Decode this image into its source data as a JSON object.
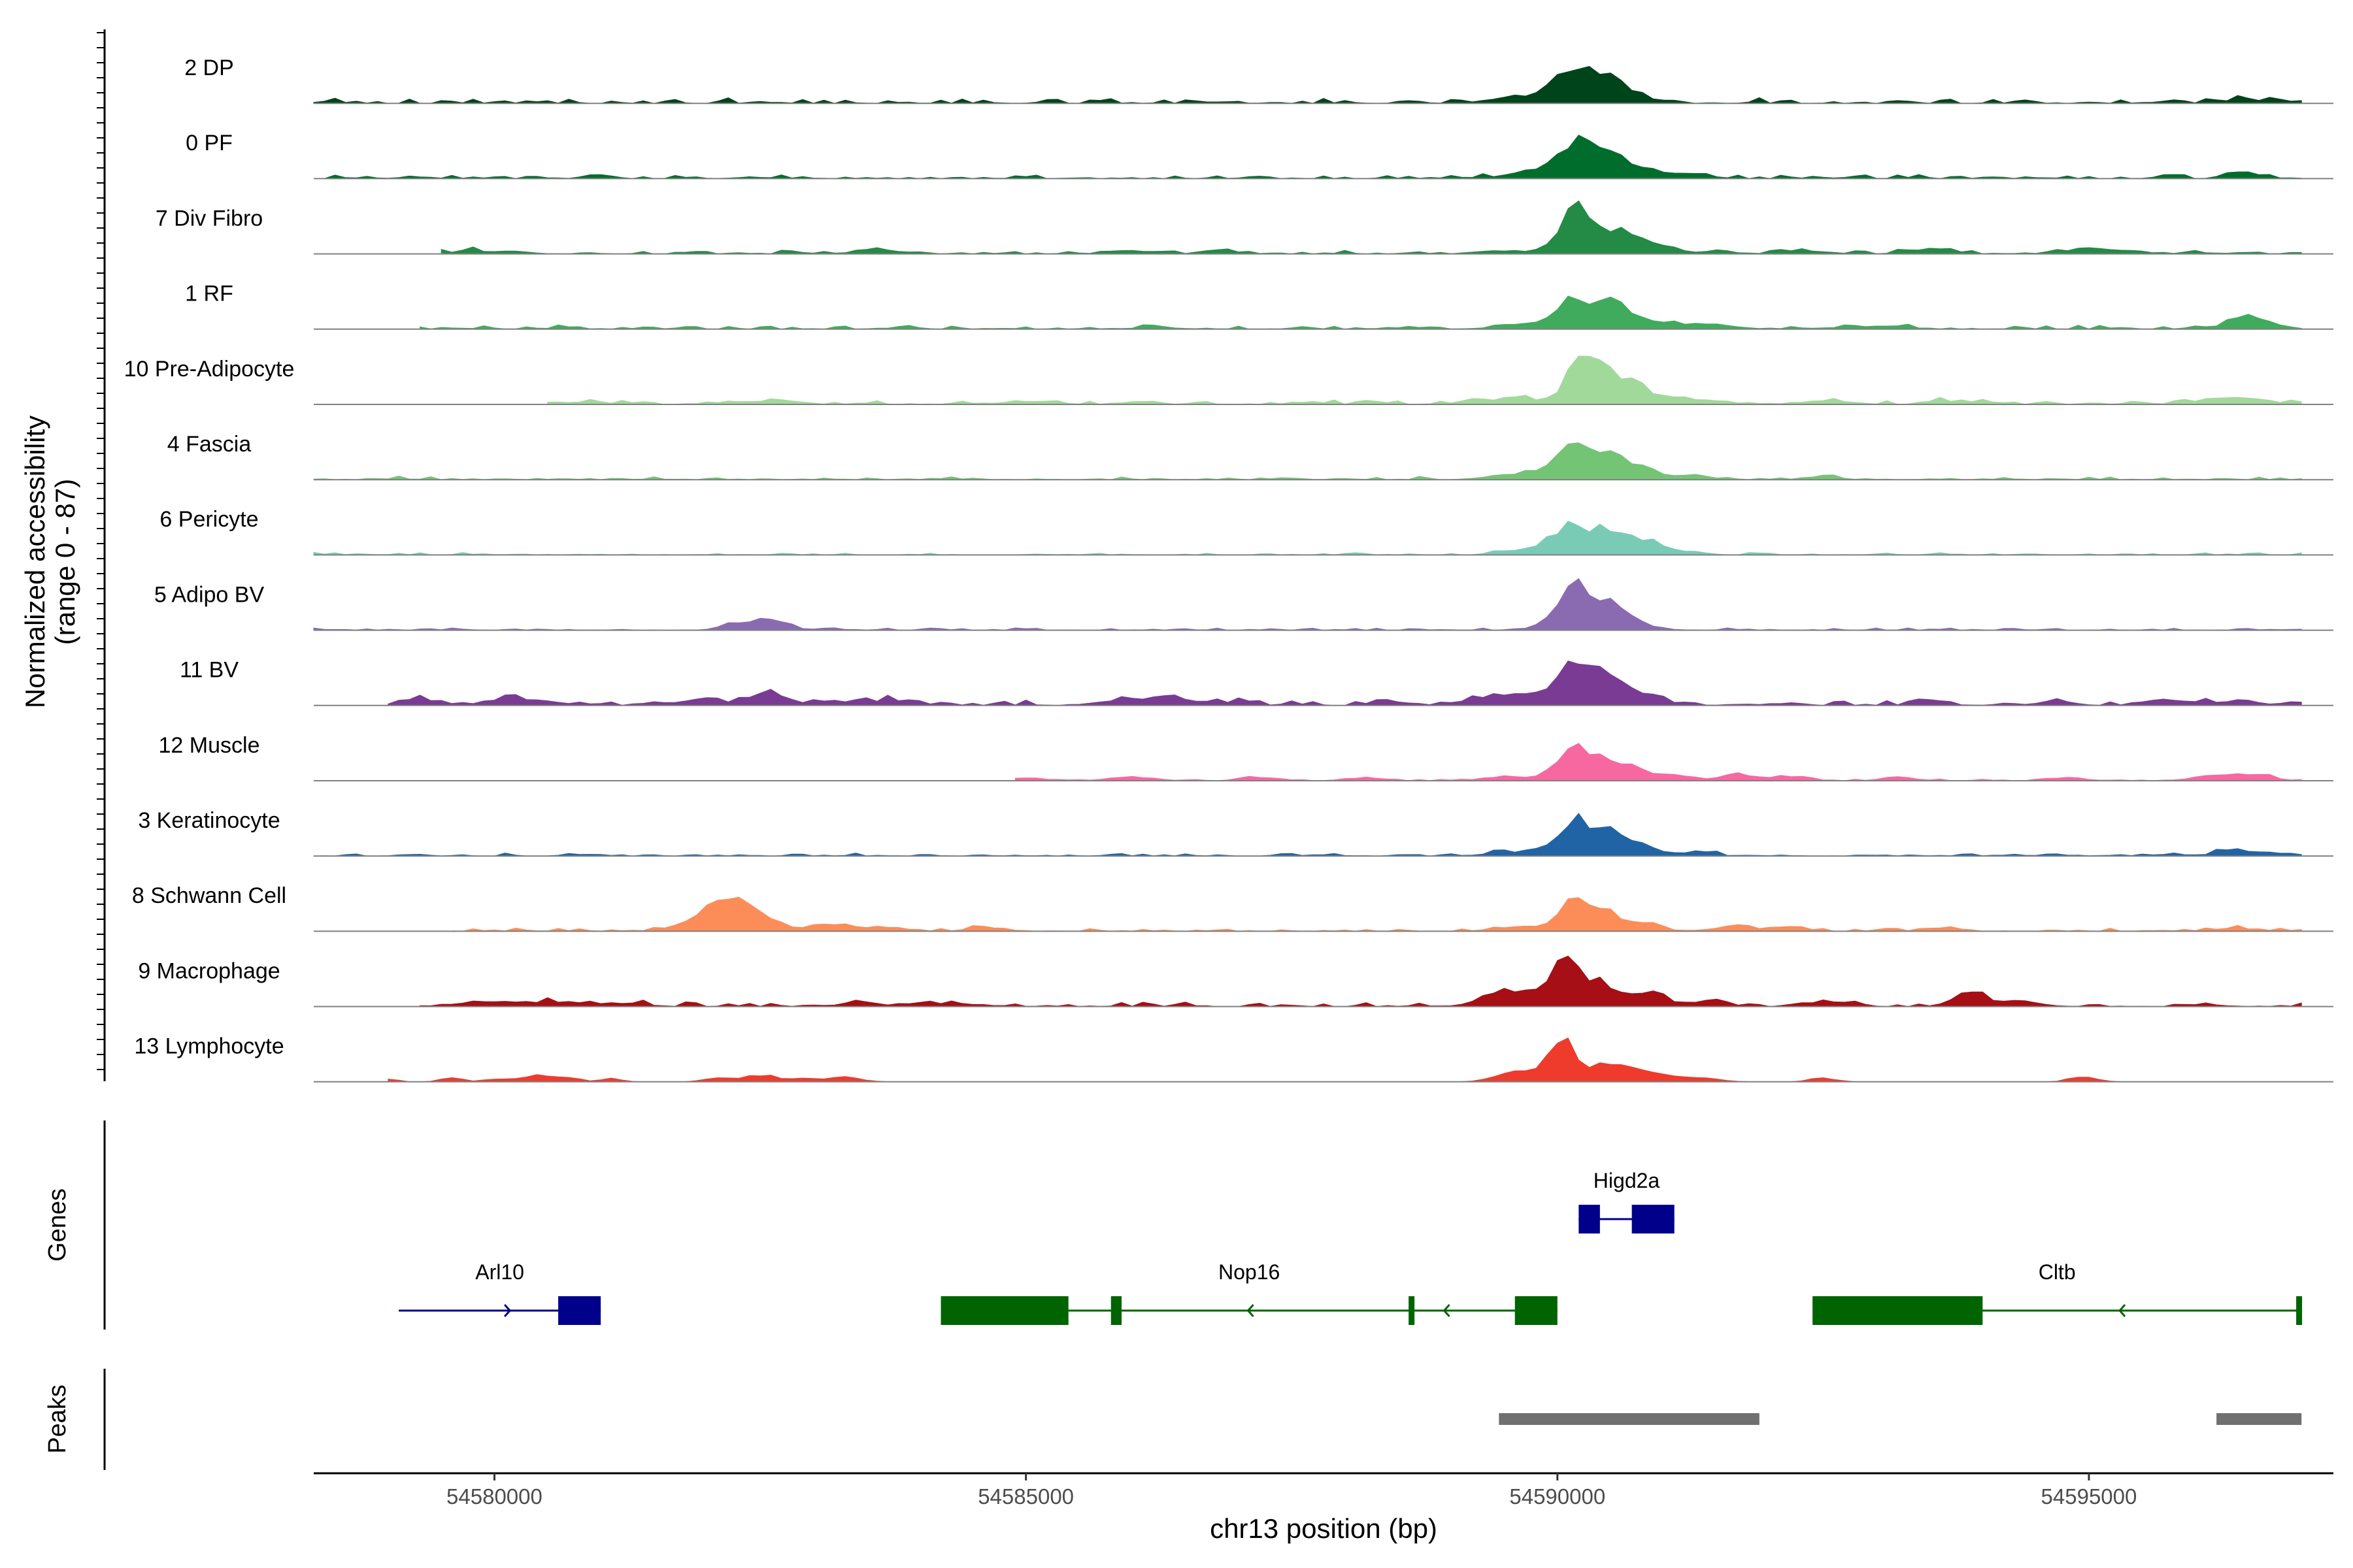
{
  "chart_data": {
    "type": "area",
    "title": "",
    "xlabel": "chr13 position (bp)",
    "ylabel": "Normalized accessibility",
    "ylabel_sub": "(range 0 - 87)",
    "xlim": [
      54578300,
      54597300
    ],
    "ylim": [
      0,
      87
    ],
    "x_ticks": [
      54580000,
      54585000,
      54590000,
      54595000
    ],
    "x_tick_labels": [
      "54580000",
      "54585000",
      "54590000",
      "54595000"
    ],
    "bin_bp": 100,
    "tracks": [
      {
        "name": "2 DP",
        "color": "#00441b",
        "bg": 0.7,
        "noise_start": 54578300,
        "noise_end": 54597000,
        "peaks": [
          [
            54589600,
            0.4,
            300
          ],
          [
            54589850,
            0.7,
            220
          ],
          [
            54590170,
            4.6,
            150
          ],
          [
            54590500,
            3.2,
            150
          ],
          [
            54590850,
            0.6,
            150
          ],
          [
            54596450,
            0.5,
            150
          ],
          [
            54596900,
            0.3,
            150
          ]
        ]
      },
      {
        "name": "0 PF",
        "color": "#006d2c",
        "bg": 0.5,
        "noise_start": 54578300,
        "noise_end": 54597000,
        "peaks": [
          [
            54589600,
            0.3,
            300
          ],
          [
            54589850,
            0.6,
            220
          ],
          [
            54590170,
            4.2,
            150
          ],
          [
            54590500,
            3.1,
            150
          ],
          [
            54590850,
            1.1,
            150
          ],
          [
            54591300,
            0.4,
            200
          ],
          [
            54596450,
            0.8,
            150
          ]
        ]
      },
      {
        "name": "7 Div Fibro",
        "color": "#238b45",
        "bg": 0.5,
        "noise_start": 54579500,
        "noise_end": 54597000,
        "peaks": [
          [
            54579800,
            0.3,
            300
          ],
          [
            54583600,
            0.4,
            200
          ],
          [
            54586100,
            0.3,
            200
          ],
          [
            54586800,
            0.4,
            120
          ],
          [
            54589500,
            0.4,
            200
          ],
          [
            54590150,
            4.7,
            150
          ],
          [
            54590400,
            2.4,
            150
          ],
          [
            54590700,
            2.2,
            150
          ],
          [
            54591000,
            0.7,
            150
          ],
          [
            54592300,
            0.5,
            200
          ],
          [
            54593500,
            0.6,
            200
          ],
          [
            54594900,
            0.4,
            200
          ],
          [
            54595300,
            0.4,
            200
          ]
        ]
      },
      {
        "name": "1 RF",
        "color": "#41ab5d",
        "bg": 0.5,
        "noise_start": 54579300,
        "noise_end": 54597000,
        "peaks": [
          [
            54589700,
            0.7,
            250
          ],
          [
            54590150,
            3.6,
            150
          ],
          [
            54590480,
            3.4,
            150
          ],
          [
            54590850,
            1.1,
            150
          ],
          [
            54591300,
            0.6,
            200
          ],
          [
            54593000,
            0.4,
            250
          ],
          [
            54596450,
            1.5,
            150
          ],
          [
            54596700,
            0.5,
            150
          ]
        ]
      },
      {
        "name": "10 Pre-Adipocyte",
        "color": "#a1d99b",
        "bg": 0.5,
        "noise_start": 54580500,
        "noise_end": 54597000,
        "peaks": [
          [
            54580800,
            0.3,
            200
          ],
          [
            54582200,
            0.3,
            200
          ],
          [
            54582700,
            0.4,
            200
          ],
          [
            54584900,
            0.3,
            150
          ],
          [
            54585200,
            0.3,
            150
          ],
          [
            54586100,
            0.3,
            150
          ],
          [
            54589400,
            0.6,
            250
          ],
          [
            54589700,
            0.4,
            150
          ],
          [
            54590200,
            5.5,
            130
          ],
          [
            54590480,
            3.6,
            150
          ],
          [
            54590800,
            1.8,
            150
          ],
          [
            54591300,
            0.6,
            150
          ],
          [
            54592500,
            0.5,
            200
          ],
          [
            54593600,
            0.4,
            150
          ],
          [
            54594000,
            0.3,
            150
          ],
          [
            54596050,
            0.4,
            150
          ],
          [
            54596400,
            0.8,
            150
          ],
          [
            54596750,
            0.3,
            150
          ]
        ]
      },
      {
        "name": "4 Fascia",
        "color": "#74c476",
        "bg": 0.4,
        "noise_start": 54578300,
        "noise_end": 54597000,
        "peaks": [
          [
            54589550,
            0.5,
            200
          ],
          [
            54589900,
            0.6,
            150
          ],
          [
            54590150,
            4.1,
            150
          ],
          [
            54590500,
            2.8,
            150
          ],
          [
            54590850,
            1.2,
            150
          ],
          [
            54591300,
            0.5,
            150
          ],
          [
            54592500,
            0.5,
            150
          ]
        ]
      },
      {
        "name": "6 Pericyte",
        "color": "#7acbb5",
        "bg": 0.3,
        "noise_start": 54578300,
        "noise_end": 54597000,
        "peaks": [
          [
            54589600,
            0.4,
            200
          ],
          [
            54589900,
            0.8,
            150
          ],
          [
            54590150,
            3.8,
            150
          ],
          [
            54590500,
            2.9,
            150
          ],
          [
            54590850,
            1.6,
            150
          ],
          [
            54591200,
            0.4,
            150
          ]
        ]
      },
      {
        "name": "5 Adipo BV",
        "color": "#8a6bb1",
        "bg": 0.3,
        "noise_start": 54578300,
        "noise_end": 54597000,
        "peaks": [
          [
            54582300,
            0.8,
            150
          ],
          [
            54582600,
            1.2,
            150
          ],
          [
            54589900,
            0.5,
            150
          ],
          [
            54590150,
            5.5,
            150
          ],
          [
            54590500,
            3.2,
            150
          ],
          [
            54590800,
            0.6,
            150
          ]
        ]
      },
      {
        "name": "11 BV",
        "color": "#7a3b94",
        "bg": 0.6,
        "noise_start": 54579000,
        "noise_end": 54597000,
        "peaks": [
          [
            54579300,
            0.7,
            200
          ],
          [
            54580200,
            0.8,
            250
          ],
          [
            54582000,
            0.6,
            300
          ],
          [
            54582600,
            1.6,
            150
          ],
          [
            54583200,
            0.7,
            150
          ],
          [
            54583700,
            0.6,
            150
          ],
          [
            54586000,
            0.8,
            250
          ],
          [
            54586400,
            1.0,
            150
          ],
          [
            54587000,
            0.5,
            150
          ],
          [
            54588400,
            0.5,
            150
          ],
          [
            54589300,
            0.8,
            200
          ],
          [
            54589700,
            1.5,
            200
          ],
          [
            54590150,
            5.3,
            150
          ],
          [
            54590500,
            3.8,
            150
          ],
          [
            54590850,
            1.2,
            150
          ],
          [
            54593500,
            0.5,
            150
          ],
          [
            54594700,
            0.5,
            150
          ],
          [
            54595600,
            0.7,
            150
          ],
          [
            54596000,
            0.5,
            150
          ],
          [
            54596400,
            0.6,
            150
          ]
        ]
      },
      {
        "name": "12 Muscle",
        "color": "#f768a1",
        "bg": 0.2,
        "noise_start": 54584900,
        "noise_end": 54597000,
        "peaks": [
          [
            54585000,
            0.4,
            150
          ],
          [
            54586000,
            0.5,
            200
          ],
          [
            54587200,
            0.4,
            150
          ],
          [
            54588200,
            0.4,
            150
          ],
          [
            54589500,
            0.5,
            200
          ],
          [
            54590100,
            3.2,
            150
          ],
          [
            54590350,
            2.7,
            150
          ],
          [
            54590700,
            1.6,
            150
          ],
          [
            54591100,
            0.7,
            150
          ],
          [
            54591700,
            0.8,
            150
          ],
          [
            54592200,
            0.6,
            150
          ],
          [
            54593200,
            0.4,
            150
          ],
          [
            54594800,
            0.4,
            150
          ],
          [
            54596200,
            0.8,
            200
          ],
          [
            54596600,
            0.7,
            150
          ]
        ]
      },
      {
        "name": "3 Keratinocyte",
        "color": "#2164a6",
        "bg": 0.4,
        "noise_start": 54578300,
        "noise_end": 54597000,
        "peaks": [
          [
            54589550,
            0.4,
            200
          ],
          [
            54589900,
            0.8,
            150
          ],
          [
            54590170,
            4.1,
            130
          ],
          [
            54590500,
            2.9,
            150
          ],
          [
            54590800,
            1.2,
            150
          ],
          [
            54591300,
            0.5,
            150
          ],
          [
            54596350,
            0.7,
            150
          ],
          [
            54596800,
            0.4,
            150
          ]
        ]
      },
      {
        "name": "8 Schwann Cell",
        "color": "#fc8d59",
        "bg": 0.4,
        "noise_start": 54579600,
        "noise_end": 54597000,
        "peaks": [
          [
            54582000,
            1.4,
            250
          ],
          [
            54582200,
            3.0,
            180
          ],
          [
            54582500,
            1.6,
            150
          ],
          [
            54583100,
            0.8,
            200
          ],
          [
            54583600,
            0.5,
            150
          ],
          [
            54584600,
            0.5,
            150
          ],
          [
            54589600,
            0.6,
            200
          ],
          [
            54590150,
            3.9,
            150
          ],
          [
            54590450,
            2.0,
            150
          ],
          [
            54590800,
            1.0,
            150
          ],
          [
            54591700,
            0.7,
            150
          ],
          [
            54592200,
            0.5,
            150
          ],
          [
            54593600,
            0.4,
            150
          ],
          [
            54596300,
            0.4,
            150
          ]
        ]
      },
      {
        "name": "9 Macrophage",
        "color": "#a50f15",
        "bg": 0.6,
        "noise_start": 54579300,
        "noise_end": 54597000,
        "peaks": [
          [
            54579800,
            0.4,
            200
          ],
          [
            54580300,
            0.5,
            200
          ],
          [
            54580800,
            0.5,
            200
          ],
          [
            54581300,
            0.4,
            150
          ],
          [
            54583500,
            0.5,
            150
          ],
          [
            54584100,
            0.5,
            150
          ],
          [
            54589500,
            1.7,
            200
          ],
          [
            54589850,
            1.3,
            150
          ],
          [
            54590080,
            6.2,
            120
          ],
          [
            54590350,
            2.7,
            150
          ],
          [
            54590650,
            1.0,
            150
          ],
          [
            54590900,
            1.2,
            150
          ],
          [
            54591500,
            0.5,
            150
          ],
          [
            54592500,
            0.7,
            150
          ],
          [
            54593900,
            1.8,
            150
          ],
          [
            54594400,
            0.6,
            150
          ]
        ]
      },
      {
        "name": "13 Lymphocyte",
        "color": "#ef3b2c",
        "bg": 0.0,
        "noise_start": 54579000,
        "noise_end": 54597000,
        "peaks": [
          [
            54579000,
            0.4,
            80
          ],
          [
            54579600,
            0.5,
            100
          ],
          [
            54580000,
            0.4,
            100
          ],
          [
            54580400,
            0.8,
            150
          ],
          [
            54580700,
            0.5,
            100
          ],
          [
            54581100,
            0.4,
            100
          ],
          [
            54582100,
            0.5,
            120
          ],
          [
            54582500,
            0.9,
            150
          ],
          [
            54582900,
            0.4,
            120
          ],
          [
            54583300,
            0.6,
            150
          ],
          [
            54589500,
            0.8,
            150
          ],
          [
            54589800,
            1.5,
            150
          ],
          [
            54590050,
            5.2,
            110
          ],
          [
            54590400,
            1.8,
            150
          ],
          [
            54590700,
            1.6,
            150
          ],
          [
            54591000,
            0.8,
            150
          ],
          [
            54591400,
            0.5,
            150
          ],
          [
            54592500,
            0.5,
            120
          ],
          [
            54594900,
            0.4,
            120
          ],
          [
            54595000,
            0.3,
            120
          ]
        ]
      }
    ],
    "genes": [
      {
        "name": "Arl10",
        "strand": "+",
        "color": "#00008b",
        "row": 2,
        "start": 54579100,
        "end": 54581000,
        "exons": [
          [
            54580600,
            54581000
          ]
        ]
      },
      {
        "name": "Higd2a",
        "strand": "+",
        "color": "#00008b",
        "row": 1,
        "start": 54590200,
        "end": 54591100,
        "exons": [
          [
            54590200,
            54590400
          ],
          [
            54590700,
            54591100
          ]
        ]
      },
      {
        "name": "Nop16",
        "strand": "-",
        "color": "#006400",
        "row": 2,
        "start": 54584200,
        "end": 54590000,
        "exons": [
          [
            54584200,
            54585400
          ],
          [
            54585800,
            54585900
          ],
          [
            54588600,
            54588650
          ],
          [
            54589600,
            54590000
          ]
        ]
      },
      {
        "name": "Cltb",
        "strand": "-",
        "color": "#006400",
        "row": 2,
        "start": 54592400,
        "end": 54597000,
        "exons": [
          [
            54592400,
            54594000
          ],
          [
            54596950,
            54597000
          ]
        ]
      }
    ],
    "peaks_track": [
      [
        54589450,
        54591900
      ],
      [
        54596200,
        54597000
      ]
    ]
  },
  "panels": {
    "genes_title": "Genes",
    "peaks_title": "Peaks"
  }
}
